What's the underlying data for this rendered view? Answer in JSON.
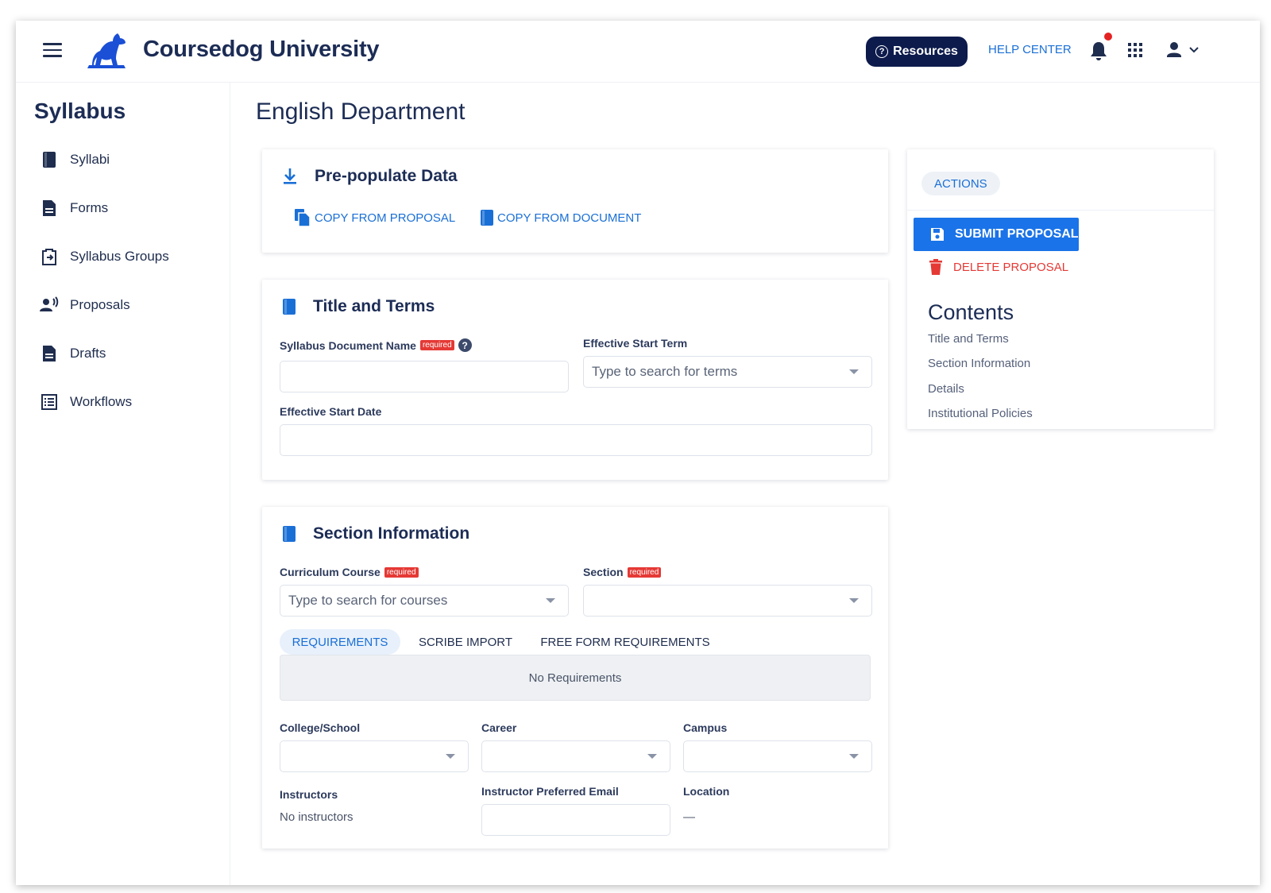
{
  "header": {
    "brand": "Coursedog University",
    "resources_label": "Resources",
    "help_center_label": "HELP CENTER"
  },
  "sidebar": {
    "title": "Syllabus",
    "items": [
      {
        "label": "Syllabi",
        "icon": "book-icon"
      },
      {
        "label": "Forms",
        "icon": "document-icon"
      },
      {
        "label": "Syllabus Groups",
        "icon": "clipboard-transfer-icon"
      },
      {
        "label": "Proposals",
        "icon": "person-voice-icon"
      },
      {
        "label": "Drafts",
        "icon": "document-icon"
      },
      {
        "label": "Workflows",
        "icon": "list-icon"
      }
    ]
  },
  "main": {
    "page_title": "English Department",
    "prepopulate": {
      "title": "Pre-populate Data",
      "copy_proposal": "COPY FROM PROPOSAL",
      "copy_document": "COPY FROM DOCUMENT"
    },
    "title_terms": {
      "title": "Title and Terms",
      "doc_name_label": "Syllabus Document Name",
      "required": "required",
      "doc_name_value": "",
      "start_term_label": "Effective Start Term",
      "start_term_placeholder": "Type to search for terms",
      "start_date_label": "Effective Start Date",
      "start_date_value": ""
    },
    "section_info": {
      "title": "Section Information",
      "course_label": "Curriculum Course",
      "course_placeholder": "Type to search for courses",
      "section_label": "Section",
      "required": "required",
      "tabs": [
        "REQUIREMENTS",
        "SCRIBE IMPORT",
        "FREE FORM REQUIREMENTS"
      ],
      "no_requirements": "No Requirements",
      "college_label": "College/School",
      "career_label": "Career",
      "campus_label": "Campus",
      "instructors_label": "Instructors",
      "instructors_value": "No instructors",
      "email_label": "Instructor Preferred Email",
      "location_label": "Location",
      "location_value": "—"
    }
  },
  "actions_panel": {
    "actions_label": "ACTIONS",
    "submit_label": "SUBMIT PROPOSAL",
    "delete_label": "DELETE PROPOSAL",
    "contents_title": "Contents",
    "contents": [
      "Title and Terms",
      "Section Information",
      "Details",
      "Institutional Policies"
    ]
  },
  "colors": {
    "primary": "#1a73e8",
    "navy": "#0d1b4c",
    "danger": "#e53935",
    "link": "#1a6fd6"
  }
}
